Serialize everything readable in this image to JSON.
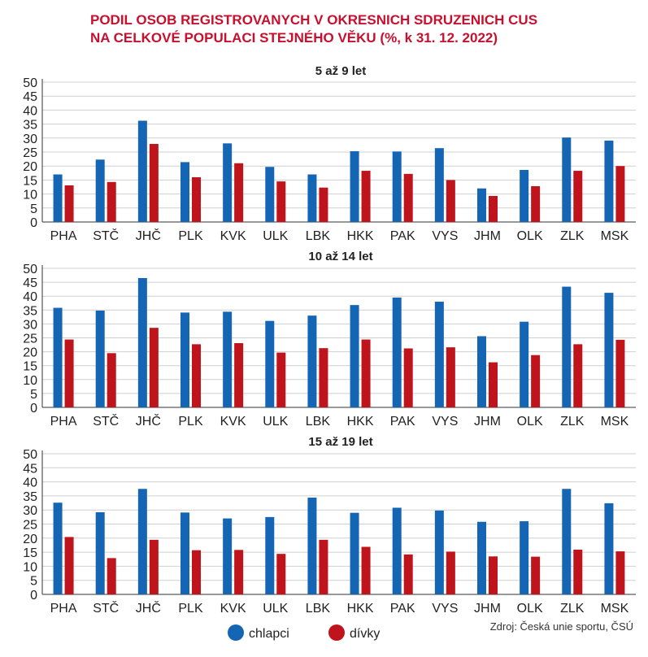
{
  "title_line1": "PODIL OSOB REGISTROVANYCH V OKRESNICH SDRUZENICH CUS",
  "title_line2": "NA CELKOVÉ POPULACI STEJNÉHO VĚKU (%, k 31. 12. 2022)",
  "source": "Zdroj: Česká unie sportu, ČSÚ",
  "colors": {
    "chlapci": "#1565b5",
    "divky": "#c0141c",
    "grid": "#cfcfcf"
  },
  "chart_data": [
    {
      "type": "bar",
      "title": "5 až 9 let",
      "categories": [
        "PHA",
        "STČ",
        "JHČ",
        "PLK",
        "KVK",
        "ULK",
        "LBK",
        "HKK",
        "PAK",
        "VYS",
        "JHM",
        "OLK",
        "ZLK",
        "MSK"
      ],
      "series": [
        {
          "name": "chlapci",
          "values": [
            17,
            22.3,
            36.2,
            21.4,
            28.1,
            19.7,
            17,
            25.3,
            25.2,
            26.4,
            12,
            18.6,
            30.2,
            29.1
          ]
        },
        {
          "name": "dívky",
          "values": [
            13.1,
            14.3,
            27.9,
            16,
            21,
            14.5,
            12.3,
            18.3,
            17.2,
            15,
            9.3,
            12.8,
            18.3,
            20
          ]
        }
      ],
      "ylim": [
        0,
        50
      ],
      "yticks": [
        0,
        5,
        10,
        15,
        20,
        25,
        30,
        35,
        40,
        45,
        50
      ],
      "grid": true
    },
    {
      "type": "bar",
      "title": "10 až 14 let",
      "categories": [
        "PHA",
        "STČ",
        "JHČ",
        "PLK",
        "KVK",
        "ULK",
        "LBK",
        "HKK",
        "PAK",
        "VYS",
        "JHM",
        "OLK",
        "ZLK",
        "MSK"
      ],
      "series": [
        {
          "name": "chlapci",
          "values": [
            35.8,
            34.8,
            46.5,
            34.1,
            34.4,
            31.1,
            33,
            36.8,
            39.5,
            38,
            25.6,
            30.8,
            43.4,
            41.2
          ]
        },
        {
          "name": "dívky",
          "values": [
            24.4,
            19.5,
            28.6,
            22.7,
            23.1,
            19.7,
            21.3,
            24.4,
            21.2,
            21.6,
            16.2,
            18.8,
            22.7,
            24.3
          ]
        }
      ],
      "ylim": [
        0,
        50
      ],
      "yticks": [
        0,
        5,
        10,
        15,
        20,
        25,
        30,
        35,
        40,
        45,
        50
      ],
      "grid": true
    },
    {
      "type": "bar",
      "title": "15 až 19 let",
      "categories": [
        "PHA",
        "STČ",
        "JHČ",
        "PLK",
        "KVK",
        "ULK",
        "LBK",
        "HKK",
        "PAK",
        "VYS",
        "JHM",
        "OLK",
        "ZLK",
        "MSK"
      ],
      "series": [
        {
          "name": "chlapci",
          "values": [
            32.6,
            29.2,
            37.5,
            29.1,
            27,
            27.5,
            34.4,
            29,
            30.8,
            29.8,
            25.8,
            26,
            37.5,
            32.4
          ]
        },
        {
          "name": "dívky",
          "values": [
            20.4,
            12.9,
            19.4,
            15.7,
            15.8,
            14.4,
            19.4,
            16.9,
            14.2,
            15.2,
            13.5,
            13.4,
            15.9,
            15.3
          ]
        }
      ],
      "ylim": [
        0,
        50
      ],
      "yticks": [
        0,
        5,
        10,
        15,
        20,
        25,
        30,
        35,
        40,
        45,
        50
      ],
      "grid": true
    }
  ],
  "legend": [
    {
      "label": "chlapci",
      "color": "#1565b5"
    },
    {
      "label": "dívky",
      "color": "#c0141c"
    }
  ]
}
